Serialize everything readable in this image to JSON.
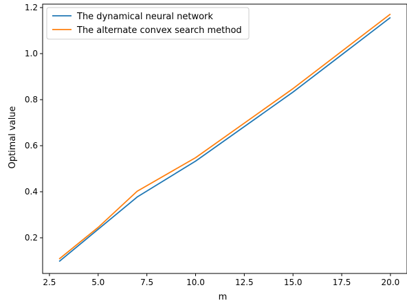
{
  "chart_data": {
    "type": "line",
    "title": "",
    "xlabel": "m",
    "ylabel": "Optimal value",
    "xlim": [
      2.15,
      20.85
    ],
    "ylim": [
      0.045,
      1.215
    ],
    "xticks": [
      2.5,
      5.0,
      7.5,
      10.0,
      12.5,
      15.0,
      17.5,
      20.0
    ],
    "xtick_labels": [
      "2.5",
      "5.0",
      "7.5",
      "10.0",
      "12.5",
      "15.0",
      "17.5",
      "20.0"
    ],
    "yticks": [
      0.2,
      0.4,
      0.6,
      0.8,
      1.0,
      1.2
    ],
    "ytick_labels": [
      "0.2",
      "0.4",
      "0.6",
      "0.8",
      "1.0",
      "1.2"
    ],
    "grid": false,
    "legend_position": "top-left",
    "x": [
      3,
      5,
      7,
      10,
      15,
      20
    ],
    "series": [
      {
        "name": "The dynamical neural network",
        "color": "#1f77b4",
        "values": [
          0.097,
          0.237,
          0.377,
          0.533,
          0.833,
          1.157
        ]
      },
      {
        "name": "The alternate convex search method",
        "color": "#ff7f0e",
        "values": [
          0.108,
          0.245,
          0.402,
          0.548,
          0.848,
          1.172
        ]
      }
    ]
  }
}
